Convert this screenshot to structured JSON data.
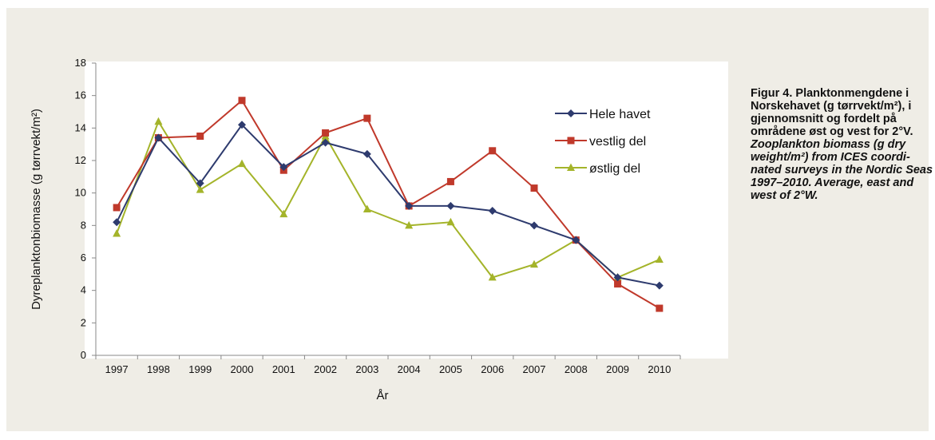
{
  "colors": {
    "panel_bg": "#efede6",
    "plot_bg": "#ffffff",
    "axis": "#888888",
    "hele_havet": "#2e3b6e",
    "vestlig_del": "#c0392b",
    "ostlig_del": "#a4b42a"
  },
  "caption": {
    "title_no": "Figur 4. Planktonmengdene i Norskehavet (g tørrvekt/m²), i gjennomsnitt og fordelt på områdene øst og vest for 2°V.",
    "title_en": "Zooplankton biomass (g dry weight/m²) from ICES coordi-nated surveys in the Nordic Seas 1997–2010. Average, east and west of 2°W."
  },
  "chart_data": {
    "type": "line",
    "title": "",
    "xlabel": "År",
    "ylabel": "Dyreplanktonbiomasse (g tørrvekt/m²)",
    "ylim": [
      0,
      18
    ],
    "yticks": [
      "0",
      "2",
      "4",
      "6",
      "8",
      "10",
      "12",
      "14",
      "16",
      "18"
    ],
    "categories": [
      "1997",
      "1998",
      "1999",
      "2000",
      "2001",
      "2002",
      "2003",
      "2004",
      "2005",
      "2006",
      "2007",
      "2008",
      "2009",
      "2010"
    ],
    "grid": false,
    "legend": "top-right",
    "series": [
      {
        "name": "Hele havet",
        "marker": "diamond",
        "color": "#2e3b6e",
        "values": [
          8.2,
          13.4,
          10.6,
          14.2,
          11.6,
          13.1,
          12.4,
          9.2,
          9.2,
          8.9,
          8.0,
          7.1,
          4.8,
          4.3
        ]
      },
      {
        "name": "vestlig del",
        "marker": "square",
        "color": "#c0392b",
        "values": [
          9.1,
          13.4,
          13.5,
          15.7,
          11.4,
          13.7,
          14.6,
          9.2,
          10.7,
          12.6,
          10.3,
          7.1,
          4.4,
          2.9
        ]
      },
      {
        "name": "østlig del",
        "marker": "triangle",
        "color": "#a4b42a",
        "values": [
          7.5,
          14.4,
          10.2,
          11.8,
          8.7,
          13.5,
          9.0,
          8.0,
          8.2,
          4.8,
          5.6,
          7.1,
          4.8,
          5.9
        ]
      }
    ]
  }
}
